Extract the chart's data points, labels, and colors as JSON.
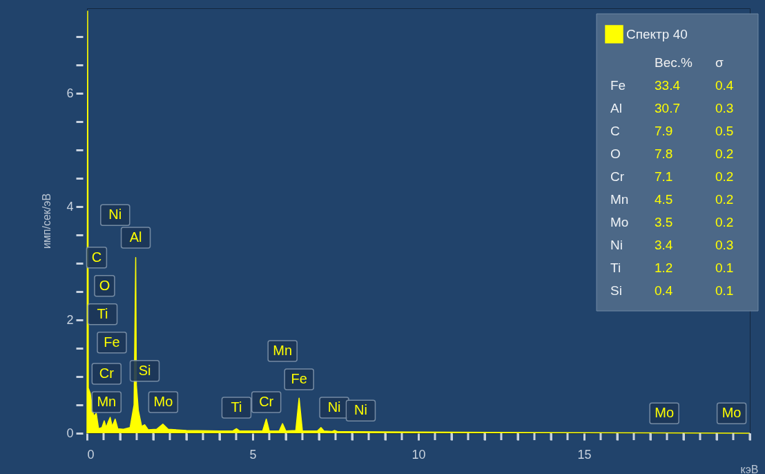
{
  "chart_data": {
    "type": "area",
    "xlabel": "кэВ",
    "ylabel": "имп/сек/эВ",
    "legend": "top right",
    "grid": false,
    "xlim": [
      0,
      20
    ],
    "ylim": [
      0,
      7.5
    ],
    "xticks": [
      0,
      {
        "value": 0.5,
        "label": null
      },
      {
        "value": 1,
        "label": null
      },
      {
        "value": 1.5,
        "label": null
      },
      {
        "value": 2,
        "label": null
      },
      {
        "value": 2.5,
        "label": null
      },
      {
        "value": 3,
        "label": null
      },
      {
        "value": 3.5,
        "label": null
      },
      {
        "value": 4,
        "label": null
      },
      {
        "value": 4.5,
        "label": null
      },
      5,
      {
        "value": 5.5,
        "label": null
      },
      {
        "value": 6,
        "label": null
      },
      {
        "value": 6.5,
        "label": null
      },
      {
        "value": 7,
        "label": null
      },
      {
        "value": 7.5,
        "label": null
      },
      {
        "value": 8,
        "label": null
      },
      {
        "value": 8.5,
        "label": null
      },
      {
        "value": 9,
        "label": null
      },
      {
        "value": 9.5,
        "label": null
      },
      10,
      {
        "value": 10.5,
        "label": null
      },
      {
        "value": 11,
        "label": null
      },
      {
        "value": 11.5,
        "label": null
      },
      {
        "value": 12,
        "label": null
      },
      {
        "value": 12.5,
        "label": null
      },
      {
        "value": 13,
        "label": null
      },
      {
        "value": 13.5,
        "label": null
      },
      {
        "value": 14,
        "label": null
      },
      {
        "value": 14.5,
        "label": null
      },
      15,
      {
        "value": 15.5,
        "label": null
      },
      {
        "value": 16,
        "label": null
      },
      {
        "value": 16.5,
        "label": null
      },
      {
        "value": 17,
        "label": null
      },
      {
        "value": 17.5,
        "label": null
      },
      {
        "value": 18,
        "label": null
      },
      {
        "value": 18.5,
        "label": null
      },
      {
        "value": 19,
        "label": null
      },
      {
        "value": 19.5,
        "label": null
      },
      {
        "value": 20,
        "label": null
      }
    ],
    "yticks": [
      0,
      {
        "value": 0.5,
        "label": null
      },
      {
        "value": 1,
        "label": null
      },
      {
        "value": 1.5,
        "label": null
      },
      2,
      {
        "value": 2.5,
        "label": null
      },
      {
        "value": 3,
        "label": null
      },
      {
        "value": 3.5,
        "label": null
      },
      4,
      {
        "value": 4.5,
        "label": null
      },
      {
        "value": 5,
        "label": null
      },
      {
        "value": 5.5,
        "label": null
      },
      6,
      {
        "value": 6.5,
        "label": null
      },
      {
        "value": 7,
        "label": null
      }
    ],
    "series": [
      {
        "name": "Спектр 40",
        "color": "#ffff00",
        "x": [
          0,
          0.02,
          0.04,
          0.1,
          0.15,
          0.2,
          0.28,
          0.35,
          0.45,
          0.52,
          0.58,
          0.64,
          0.7,
          0.76,
          0.85,
          0.93,
          1.1,
          1.3,
          1.42,
          1.47,
          1.49,
          1.55,
          1.65,
          1.74,
          1.85,
          2.1,
          2.29,
          2.45,
          3,
          4,
          4.4,
          4.51,
          4.6,
          5.3,
          5.41,
          5.5,
          5.8,
          5.9,
          6.0,
          6.3,
          6.4,
          6.5,
          6.95,
          7.06,
          7.15,
          7.4,
          7.47,
          7.55,
          10,
          15,
          20
        ],
        "values": [
          0,
          7.45,
          0.8,
          0.7,
          0.5,
          0.3,
          0.35,
          0.08,
          0.1,
          0.22,
          0.1,
          0.2,
          0.28,
          0.12,
          0.25,
          0.08,
          0.07,
          0.1,
          0.5,
          3.1,
          0.85,
          0.4,
          0.12,
          0.15,
          0.06,
          0.07,
          0.16,
          0.07,
          0.05,
          0.04,
          0.04,
          0.08,
          0.04,
          0.04,
          0.25,
          0.04,
          0.04,
          0.17,
          0.04,
          0.05,
          0.62,
          0.04,
          0.04,
          0.1,
          0.04,
          0.03,
          0.05,
          0.03,
          0.02,
          0.01,
          0
        ]
      }
    ],
    "annotations": [
      {
        "text": "C",
        "x": 0.29,
        "y": 3.1
      },
      {
        "text": "Ni",
        "x": 0.85,
        "y": 3.85
      },
      {
        "text": "Al",
        "x": 1.47,
        "y": 3.45
      },
      {
        "text": "O",
        "x": 0.53,
        "y": 2.6
      },
      {
        "text": "Ti",
        "x": 0.47,
        "y": 2.1
      },
      {
        "text": "Fe",
        "x": 0.75,
        "y": 1.6
      },
      {
        "text": "Cr",
        "x": 0.59,
        "y": 1.05
      },
      {
        "text": "Si",
        "x": 1.74,
        "y": 1.1
      },
      {
        "text": "Mn",
        "x": 0.59,
        "y": 0.55
      },
      {
        "text": "Mo",
        "x": 2.3,
        "y": 0.55
      },
      {
        "text": "Ti",
        "x": 4.51,
        "y": 0.45
      },
      {
        "text": "Cr",
        "x": 5.41,
        "y": 0.55
      },
      {
        "text": "Mn",
        "x": 5.9,
        "y": 1.45
      },
      {
        "text": "Fe",
        "x": 6.4,
        "y": 0.95
      },
      {
        "text": "Ni",
        "x": 7.46,
        "y": 0.45
      },
      {
        "text": "Ni",
        "x": 8.26,
        "y": 0.4
      },
      {
        "text": "Mo",
        "x": 17.42,
        "y": 0.35
      },
      {
        "text": "Mo",
        "x": 19.45,
        "y": 0.35
      },
      "Вес.% σ",
      "Fe 33.4 0.4",
      "Al 30.7 0.3",
      "C 7.9 0.5",
      "O 7.8 0.2",
      "Cr 7.1 0.2",
      "Mn 4.5 0.2",
      "Mo 3.5 0.2",
      "Ni 3.4 0.3",
      "Ti 1.2 0.1",
      "Si 0.4 0.1"
    ]
  }
}
